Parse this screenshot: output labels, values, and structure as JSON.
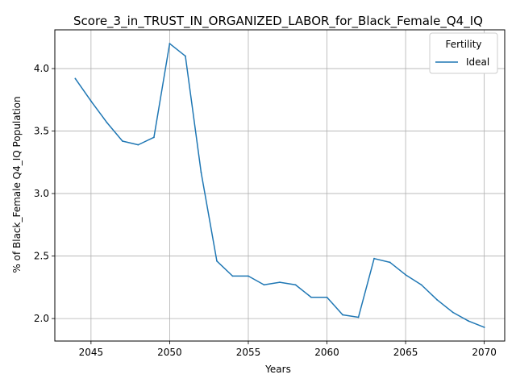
{
  "chart_data": {
    "type": "line",
    "title": "Score_3_in_TRUST_IN_ORGANIZED_LABOR_for_Black_Female_Q4_IQ",
    "xlabel": "Years",
    "ylabel": "% of Black_Female Q4_IQ Population",
    "xlim": [
      2042.7,
      2071.3
    ],
    "ylim": [
      1.82,
      4.31
    ],
    "xticks": [
      2045,
      2050,
      2055,
      2060,
      2065,
      2070
    ],
    "yticks": [
      2.0,
      2.5,
      3.0,
      3.5,
      4.0
    ],
    "grid": true,
    "legend": {
      "title": "Fertility",
      "position": "top-right"
    },
    "series": [
      {
        "name": "Ideal",
        "color": "#1f77b4",
        "x": [
          2044,
          2045,
          2046,
          2047,
          2048,
          2049,
          2050,
          2051,
          2052,
          2053,
          2054,
          2055,
          2056,
          2057,
          2058,
          2059,
          2060,
          2061,
          2062,
          2063,
          2064,
          2065,
          2066,
          2067,
          2068,
          2069,
          2070
        ],
        "y": [
          3.92,
          3.74,
          3.57,
          3.42,
          3.39,
          3.45,
          4.2,
          4.1,
          3.17,
          2.46,
          2.34,
          2.34,
          2.27,
          2.29,
          2.27,
          2.17,
          2.17,
          2.03,
          2.01,
          2.48,
          2.45,
          2.35,
          2.27,
          2.15,
          2.05,
          1.98,
          1.93
        ]
      }
    ]
  }
}
